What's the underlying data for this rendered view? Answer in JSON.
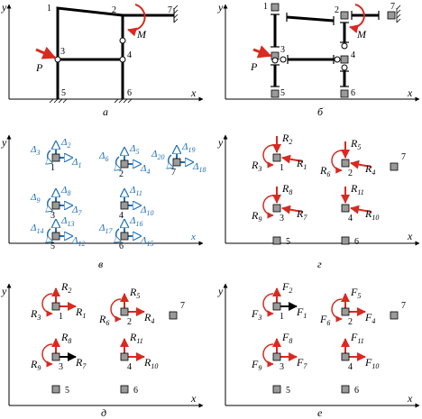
{
  "panels": {
    "a": {
      "caption": "а",
      "y": "y",
      "x": "x",
      "P": "P",
      "M": "M",
      "nodes": [
        "1",
        "2",
        "3",
        "4",
        "5",
        "6",
        "7"
      ]
    },
    "b": {
      "caption": "б",
      "y": "y",
      "x": "x",
      "P": "P",
      "M": "M",
      "nodes": [
        "1",
        "2",
        "3",
        "4",
        "5",
        "6",
        "7"
      ]
    },
    "v": {
      "caption": "в",
      "y": "y",
      "x": "x",
      "n1": "1",
      "n2": "2",
      "n3": "3",
      "n4": "4",
      "n5": "5",
      "n6": "6",
      "n7": "7",
      "d1": "1",
      "d2": "2",
      "d3": "3",
      "d4": "4",
      "d5": "5",
      "d6": "6",
      "d7": "7",
      "d8": "8",
      "d9": "9",
      "d10": "10",
      "d11": "11",
      "d12": "12",
      "d13": "13",
      "d14": "14",
      "d15": "15",
      "d16": "16",
      "d17": "17",
      "d18": "18",
      "d19": "19",
      "d20": "20",
      "delta": "Δ"
    },
    "g": {
      "caption": "г",
      "y": "y",
      "x": "x",
      "R": "R",
      "subs": [
        "1",
        "2",
        "3",
        "4",
        "5",
        "6",
        "7",
        "8",
        "9",
        "10",
        "11"
      ],
      "n": [
        "1",
        "2",
        "3",
        "4",
        "5",
        "6",
        "7"
      ]
    },
    "d": {
      "caption": "д",
      "y": "y",
      "x": "x",
      "R": "R",
      "subs": [
        "1",
        "2",
        "3",
        "4",
        "5",
        "6",
        "7",
        "8",
        "9",
        "10",
        "11"
      ],
      "n": [
        "1",
        "2",
        "3",
        "4",
        "5",
        "6",
        "7"
      ]
    },
    "e": {
      "caption": "е",
      "y": "y",
      "x": "x",
      "F": "F",
      "subs": [
        "1",
        "2",
        "3",
        "4",
        "5",
        "6",
        "7",
        "8",
        "9",
        "10",
        "11"
      ],
      "n": [
        "1",
        "2",
        "3",
        "4",
        "5",
        "6",
        "7"
      ]
    }
  },
  "colors": {
    "red": "#d82a20",
    "blue": "#1d6fb8",
    "node_fill": "#9a9a9a"
  }
}
